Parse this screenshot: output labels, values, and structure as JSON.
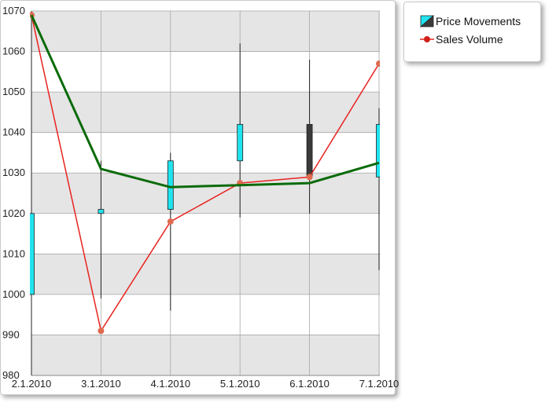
{
  "chart_data": {
    "type": "candlestick-with-lines",
    "categories": [
      "2.1.2010",
      "3.1.2010",
      "4.1.2010",
      "5.1.2010",
      "6.1.2010",
      "7.1.2010"
    ],
    "ylim": [
      980,
      1070
    ],
    "yticks": [
      980,
      990,
      1000,
      1010,
      1020,
      1030,
      1040,
      1050,
      1060,
      1070
    ],
    "grid": true,
    "legend_position": "right",
    "candles": [
      {
        "x": "2.1.2010",
        "open": 1000,
        "close": 1020,
        "high": 1070,
        "low": 980
      },
      {
        "x": "3.1.2010",
        "open": 1020,
        "close": 1021,
        "high": 1033,
        "low": 999
      },
      {
        "x": "4.1.2010",
        "open": 1021,
        "close": 1033,
        "high": 1035,
        "low": 996
      },
      {
        "x": "5.1.2010",
        "open": 1033,
        "close": 1042,
        "high": 1062,
        "low": 1019
      },
      {
        "x": "6.1.2010",
        "open": 1042,
        "close": 1029,
        "high": 1058,
        "low": 1020
      },
      {
        "x": "7.1.2010",
        "open": 1029,
        "close": 1042,
        "high": 1046,
        "low": 1006
      }
    ],
    "trend_values": [
      1069,
      1031,
      1026.5,
      1027,
      1027.5,
      1032.5
    ],
    "series": [
      {
        "name": "Price Movements",
        "type": "candlestick"
      },
      {
        "name": "Sales Volume",
        "type": "line",
        "values": [
          1069,
          991,
          1018,
          1027.5,
          1029,
          1057
        ]
      }
    ],
    "colors": {
      "rising": "#1fe4f0",
      "falling": "#3a3a3a",
      "sales": "#e8231f",
      "sales_marker": "#e06a50",
      "trend": "#0a6b0a",
      "band": "#e5e5e5",
      "grid": "#a8a8a8"
    }
  }
}
